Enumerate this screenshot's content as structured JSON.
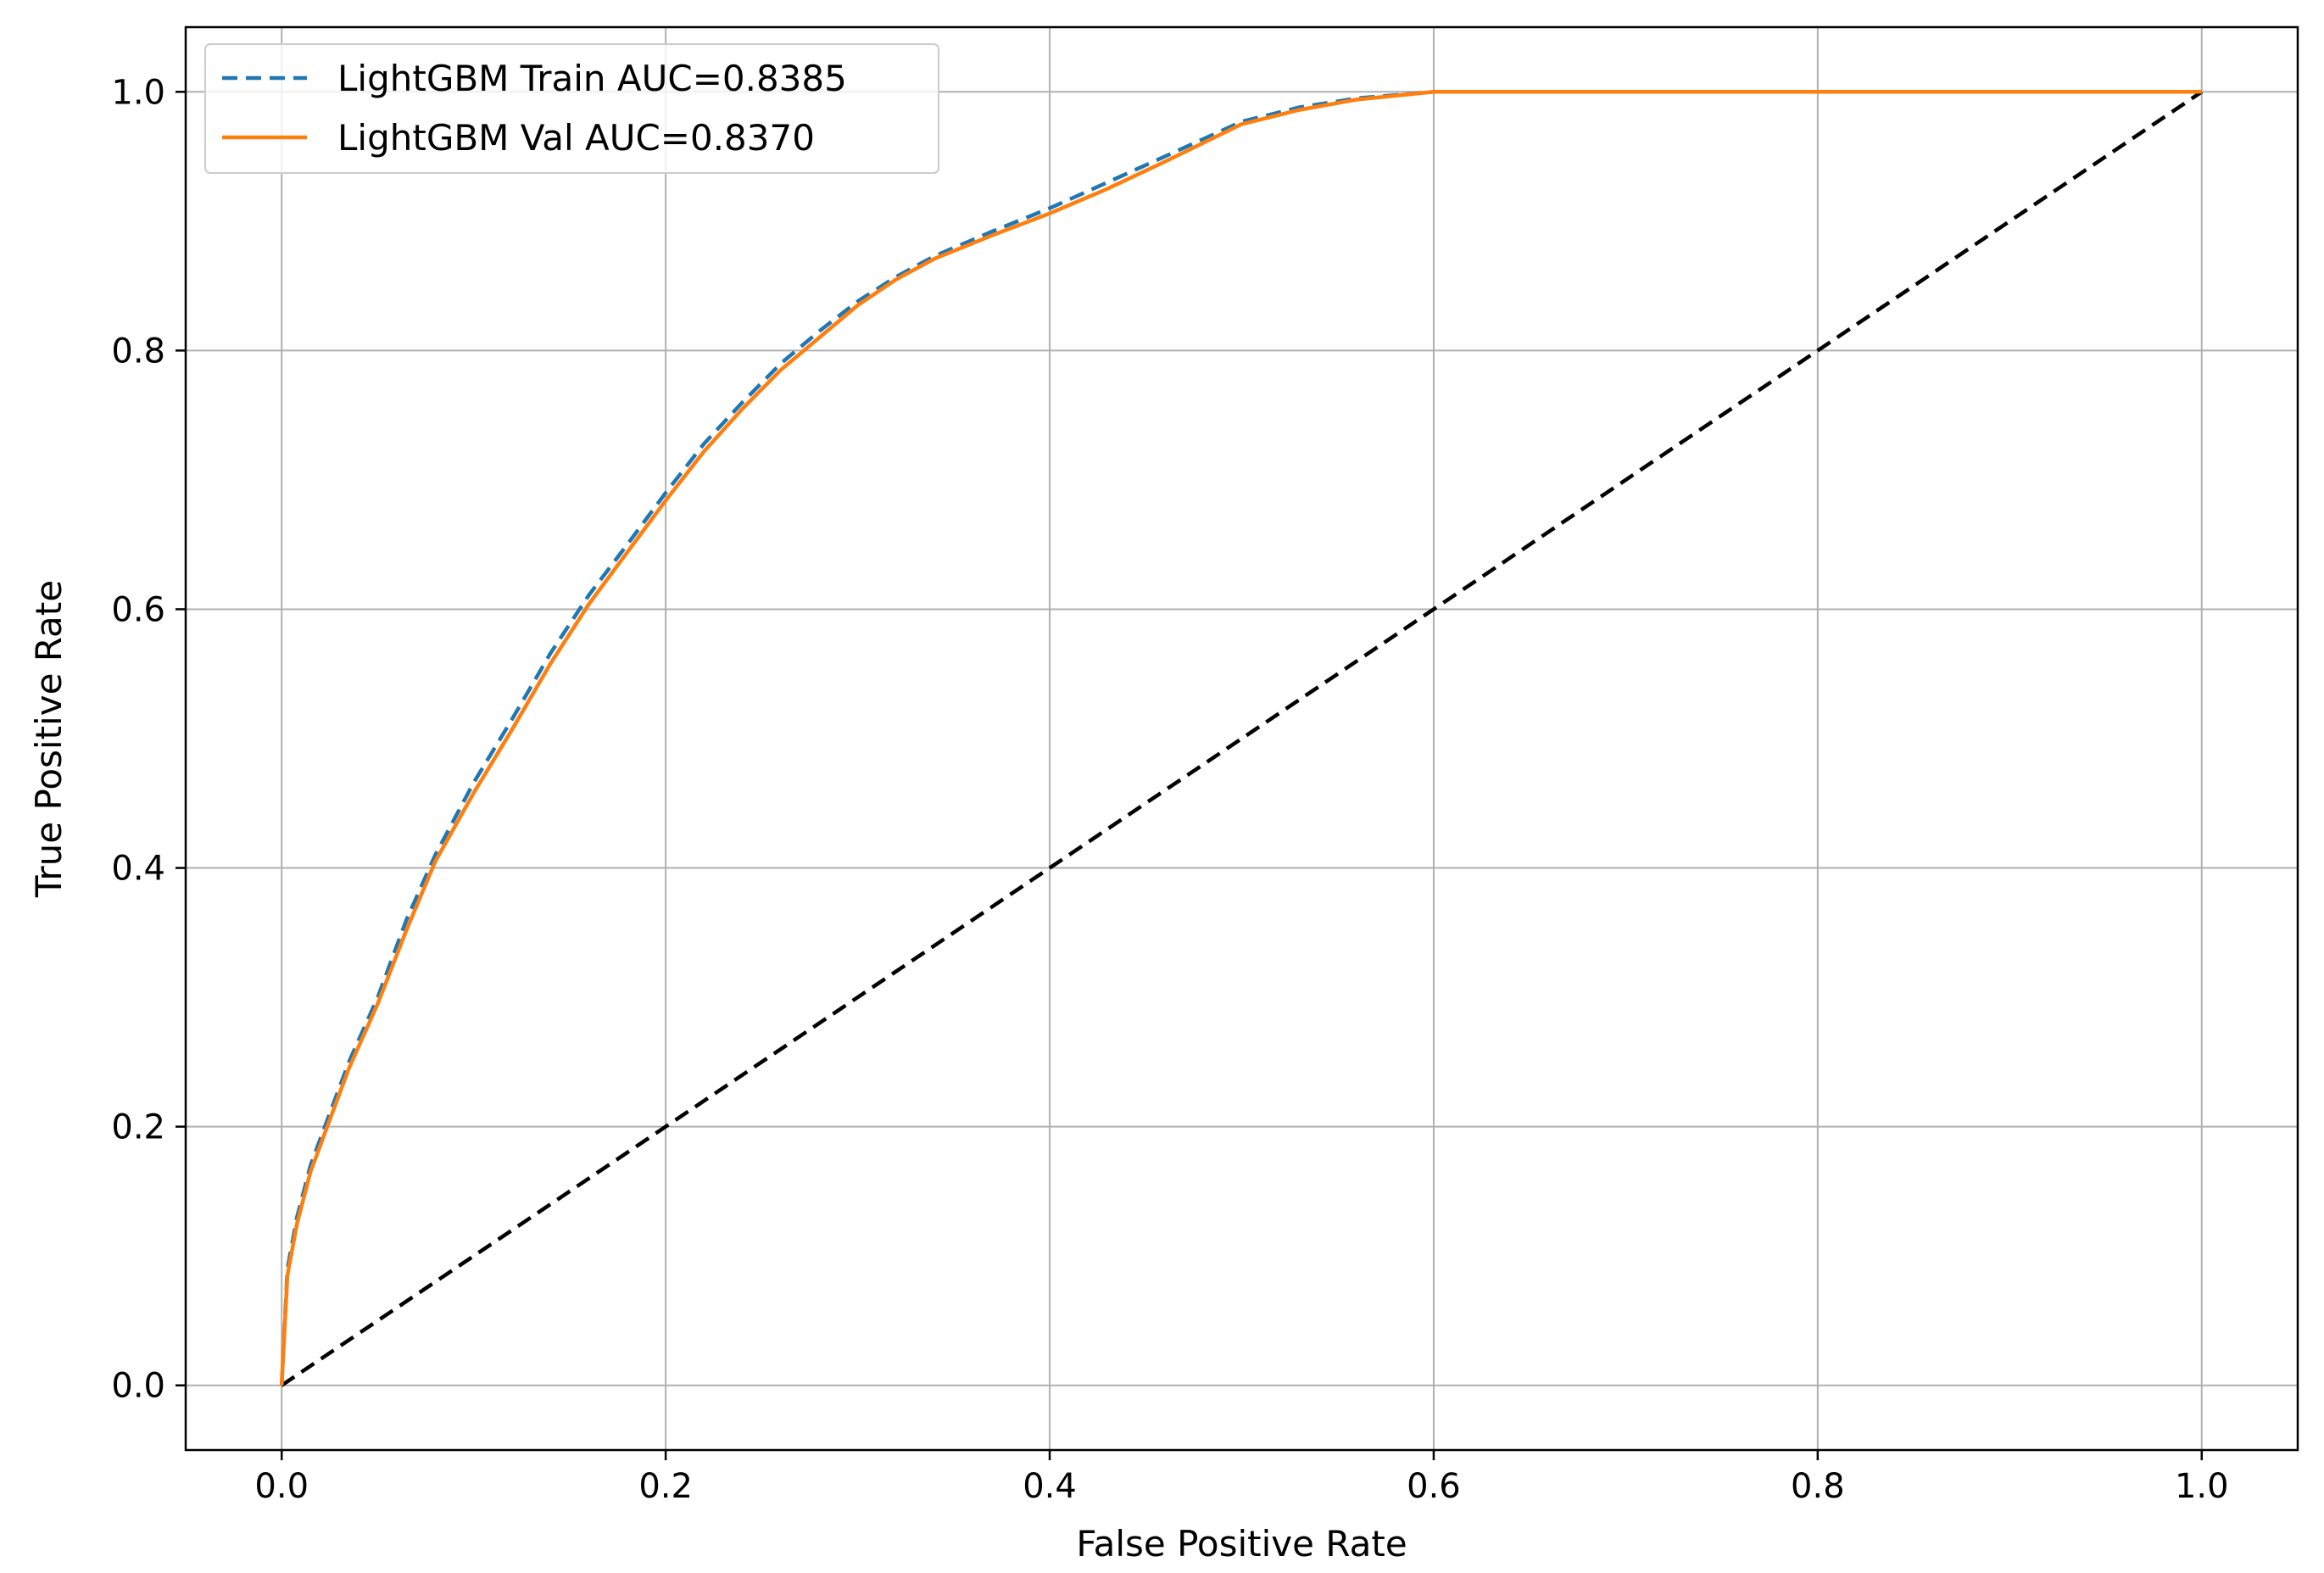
{
  "chart_data": {
    "type": "line",
    "title": "",
    "xlabel": "False Positive Rate",
    "ylabel": "True Positive Rate",
    "xlim": [
      -0.05,
      1.05
    ],
    "ylim": [
      -0.05,
      1.05
    ],
    "xticks": [
      0.0,
      0.2,
      0.4,
      0.6,
      0.8,
      1.0
    ],
    "yticks": [
      0.0,
      0.2,
      0.4,
      0.6,
      0.8,
      1.0
    ],
    "xtick_labels": [
      "0.0",
      "0.2",
      "0.4",
      "0.6",
      "0.8",
      "1.0"
    ],
    "ytick_labels": [
      "0.0",
      "0.2",
      "0.4",
      "0.6",
      "0.8",
      "1.0"
    ],
    "grid": true,
    "legend_position": "top-left",
    "series": [
      {
        "name": "LightGBM Train AUC=0.8385",
        "color": "#1f77b4",
        "style": "dashed",
        "x": [
          0.0,
          0.003,
          0.008,
          0.015,
          0.025,
          0.035,
          0.05,
          0.065,
          0.08,
          0.1,
          0.12,
          0.14,
          0.16,
          0.18,
          0.2,
          0.22,
          0.24,
          0.26,
          0.28,
          0.3,
          0.32,
          0.34,
          0.37,
          0.4,
          0.43,
          0.46,
          0.5,
          0.53,
          0.56,
          0.6,
          0.7,
          0.8,
          0.9,
          1.0
        ],
        "y": [
          0.0,
          0.09,
          0.13,
          0.17,
          0.21,
          0.25,
          0.3,
          0.36,
          0.41,
          0.466,
          0.515,
          0.566,
          0.611,
          0.65,
          0.69,
          0.728,
          0.76,
          0.79,
          0.815,
          0.838,
          0.857,
          0.873,
          0.892,
          0.91,
          0.93,
          0.95,
          0.977,
          0.988,
          0.995,
          1.0,
          1.0,
          1.0,
          1.0,
          1.0
        ]
      },
      {
        "name": "LightGBM Val AUC=0.8370",
        "color": "#ff7f0e",
        "style": "solid",
        "x": [
          0.0,
          0.003,
          0.008,
          0.015,
          0.025,
          0.035,
          0.05,
          0.065,
          0.08,
          0.1,
          0.12,
          0.14,
          0.16,
          0.18,
          0.2,
          0.22,
          0.24,
          0.26,
          0.28,
          0.3,
          0.32,
          0.34,
          0.37,
          0.4,
          0.43,
          0.46,
          0.5,
          0.53,
          0.56,
          0.6,
          0.7,
          0.8,
          0.9,
          1.0
        ],
        "y": [
          0.0,
          0.085,
          0.125,
          0.165,
          0.205,
          0.245,
          0.295,
          0.352,
          0.405,
          0.458,
          0.507,
          0.558,
          0.604,
          0.644,
          0.684,
          0.722,
          0.755,
          0.785,
          0.81,
          0.835,
          0.855,
          0.871,
          0.889,
          0.906,
          0.925,
          0.946,
          0.975,
          0.986,
          0.994,
          1.0,
          1.0,
          1.0,
          1.0,
          1.0
        ]
      },
      {
        "name": "",
        "color": "#000000",
        "style": "dashed",
        "x": [
          0.0,
          1.0
        ],
        "y": [
          0.0,
          1.0
        ]
      }
    ]
  }
}
